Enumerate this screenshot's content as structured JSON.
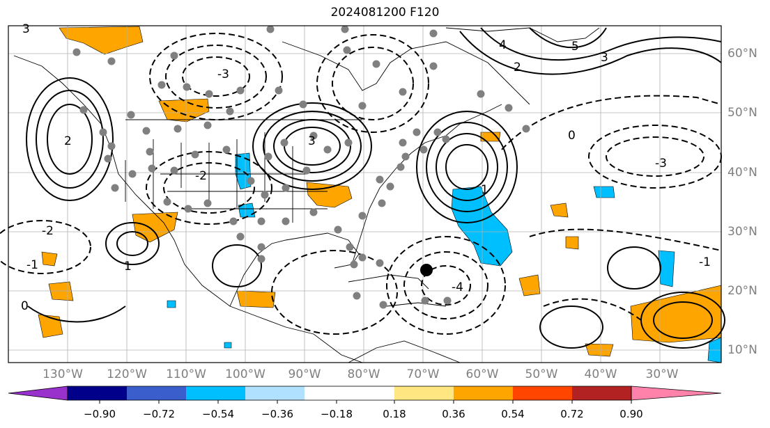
{
  "title": "2024081200 F120",
  "map": {
    "lon_labels": [
      "130°W",
      "120°W",
      "110°W",
      "100°W",
      "90°W",
      "80°W",
      "70°W",
      "60°W",
      "50°W",
      "40°W",
      "30°W"
    ],
    "lat_labels": [
      "60°N",
      "50°N",
      "40°N",
      "30°N",
      "20°N",
      "10°N"
    ],
    "contour_labels": [
      "3",
      "2",
      "1",
      "0",
      "-1",
      "-2",
      "-3",
      "4",
      "5",
      "3",
      "2",
      "1",
      "0",
      "-1",
      "-2",
      "-3",
      "-4",
      "3"
    ],
    "colors": {
      "positive_fill": "#ffa500",
      "negative_fill": "#00bfff",
      "grid": "#b0b0b0",
      "station_dot": "#808080"
    }
  },
  "colorbar": {
    "ticks": [
      "−0.90",
      "−0.72",
      "−0.54",
      "−0.36",
      "−0.18",
      "0.18",
      "0.36",
      "0.54",
      "0.72",
      "0.90"
    ],
    "colors": [
      "#9932cc",
      "#00008b",
      "#3a5fcd",
      "#00bfff",
      "#b0e2ff",
      "#ffffff",
      "#ffe680",
      "#ffa500",
      "#ff4500",
      "#b22222",
      "#ff82ab"
    ]
  }
}
